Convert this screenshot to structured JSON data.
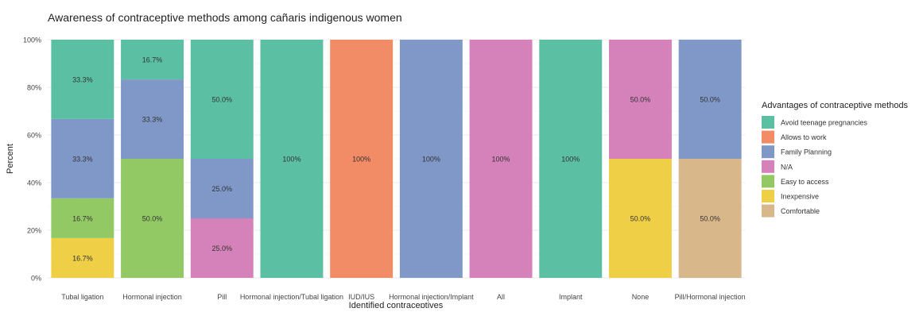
{
  "chart_data": {
    "type": "bar",
    "stacked": true,
    "percent": true,
    "title": "Awareness of contraceptive methods among cañaris indigenous women",
    "xlabel": "Identified contraceptives",
    "ylabel": "Percent",
    "ylim": [
      0,
      100
    ],
    "y_ticks": [
      "0%",
      "20%",
      "40%",
      "60%",
      "80%",
      "100%"
    ],
    "grid": true,
    "legend_position": "right",
    "legend_title": "Advantages of contraceptive methods",
    "categories": [
      "Tubal ligation",
      "Hormonal injection",
      "Pill",
      "Hormonal injection/Tubal ligation",
      "IUD/IUS",
      "Hormonal injection/Implant",
      "All",
      "Implant",
      "None",
      "Pill/Hormonal injection"
    ],
    "series": [
      {
        "name": "Avoid teenage pregnancies",
        "color": "#5bbfa3",
        "values": [
          33.3,
          16.7,
          50.0,
          100,
          0,
          0,
          0,
          100,
          0,
          0
        ],
        "labels": [
          "33.3%",
          "16.7%",
          "50.0%",
          "100%",
          "",
          "",
          "",
          "100%",
          "",
          ""
        ]
      },
      {
        "name": "Allows to work",
        "color": "#f28c67",
        "values": [
          0,
          0,
          0,
          0,
          100,
          0,
          0,
          0,
          0,
          0
        ],
        "labels": [
          "",
          "",
          "",
          "",
          "100%",
          "",
          "",
          "",
          "",
          ""
        ]
      },
      {
        "name": "Family Planning",
        "color": "#7f98c7",
        "values": [
          33.3,
          33.3,
          25.0,
          0,
          0,
          100,
          0,
          0,
          0,
          50.0
        ],
        "labels": [
          "33.3%",
          "33.3%",
          "25.0%",
          "",
          "",
          "100%",
          "",
          "",
          "",
          "50.0%"
        ]
      },
      {
        "name": "N/A",
        "color": "#d482b9",
        "values": [
          0,
          0,
          25.0,
          0,
          0,
          0,
          100,
          0,
          50.0,
          0
        ],
        "labels": [
          "",
          "",
          "25.0%",
          "",
          "",
          "",
          "100%",
          "",
          "50.0%",
          ""
        ]
      },
      {
        "name": "Easy to access",
        "color": "#93c965",
        "values": [
          16.7,
          50.0,
          0,
          0,
          0,
          0,
          0,
          0,
          0,
          0
        ],
        "labels": [
          "16.7%",
          "50.0%",
          "",
          "",
          "",
          "",
          "",
          "",
          "",
          ""
        ]
      },
      {
        "name": "Inexpensive",
        "color": "#efcf46",
        "values": [
          16.7,
          0,
          0,
          0,
          0,
          0,
          0,
          0,
          50.0,
          0
        ],
        "labels": [
          "16.7%",
          "",
          "",
          "",
          "",
          "",
          "",
          "",
          "50.0%",
          ""
        ]
      },
      {
        "name": "Comfortable",
        "color": "#d8b78a",
        "values": [
          0,
          0,
          0,
          0,
          0,
          0,
          0,
          0,
          0,
          50.0
        ],
        "labels": [
          "",
          "",
          "",
          "",
          "",
          "",
          "",
          "",
          "",
          "50.0%"
        ]
      }
    ]
  }
}
